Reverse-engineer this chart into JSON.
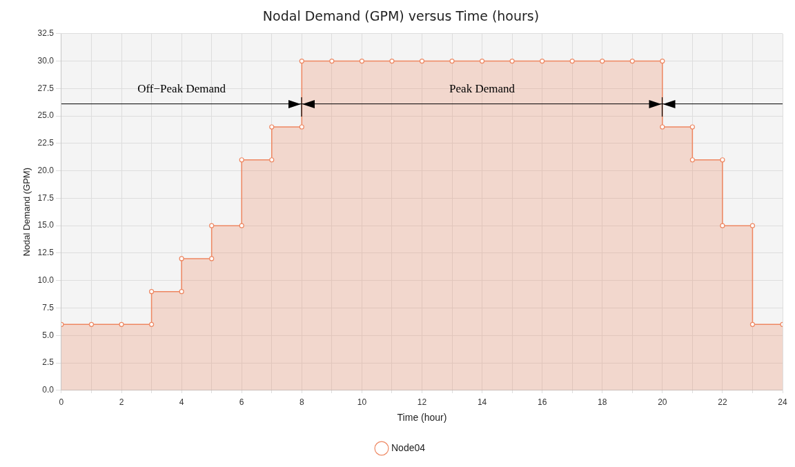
{
  "chart_data": {
    "type": "area",
    "title": "Nodal Demand (GPM) versus Time (hours)",
    "xlabel": "Time (hour)",
    "ylabel": "Nodal Demand (GPM)",
    "x": [
      0,
      1,
      2,
      3,
      3,
      4,
      4,
      5,
      5,
      6,
      6,
      7,
      7,
      8,
      8,
      9,
      10,
      11,
      12,
      13,
      14,
      15,
      16,
      17,
      18,
      19,
      20,
      20,
      21,
      21,
      22,
      22,
      23,
      23,
      24
    ],
    "series": [
      {
        "name": "Node04",
        "color": "#ee8660",
        "values": [
          6,
          6,
          6,
          6,
          9,
          9,
          12,
          12,
          15,
          15,
          21,
          21,
          24,
          24,
          30,
          30,
          30,
          30,
          30,
          30,
          30,
          30,
          30,
          30,
          30,
          30,
          30,
          24,
          24,
          21,
          21,
          15,
          15,
          6,
          6
        ]
      }
    ],
    "xlim": [
      0,
      24
    ],
    "xticks": [
      0,
      {
        "value": 1,
        "label": null
      },
      2,
      {
        "value": 3,
        "label": null
      },
      4,
      {
        "value": 5,
        "label": null
      },
      6,
      {
        "value": 7,
        "label": null
      },
      8,
      {
        "value": 9,
        "label": null
      },
      10,
      {
        "value": 11,
        "label": null
      },
      12,
      {
        "value": 13,
        "label": null
      },
      14,
      {
        "value": 15,
        "label": null
      },
      16,
      {
        "value": 17,
        "label": null
      },
      18,
      {
        "value": 19,
        "label": null
      },
      20,
      {
        "value": 21,
        "label": null
      },
      22,
      {
        "value": 23,
        "label": null
      },
      24
    ],
    "ylim": [
      0,
      32.5
    ],
    "yticks": [
      {
        "value": 0,
        "label": "0.0"
      },
      {
        "value": 2.5,
        "label": "2.5"
      },
      {
        "value": 5,
        "label": "5.0"
      },
      {
        "value": 7.5,
        "label": "7.5"
      },
      {
        "value": 10,
        "label": "10.0"
      },
      {
        "value": 12.5,
        "label": "12.5"
      },
      {
        "value": 15,
        "label": "15.0"
      },
      {
        "value": 17.5,
        "label": "17.5"
      },
      {
        "value": 20,
        "label": "20.0"
      },
      {
        "value": 22.5,
        "label": "22.5"
      },
      {
        "value": 25,
        "label": "25.0"
      },
      {
        "value": 27.5,
        "label": "27.5"
      },
      {
        "value": 30,
        "label": "30.0"
      },
      {
        "value": 32.5,
        "label": "32.5"
      }
    ],
    "ref_lines": [
      {
        "axis": "y",
        "value": 26.1,
        "color": "#000000"
      }
    ],
    "annotations": [
      "Off−Peak Demand",
      "Peak Demand"
    ],
    "grid": true,
    "legend": "bottom",
    "marker": "circle",
    "line_style": "solid"
  }
}
